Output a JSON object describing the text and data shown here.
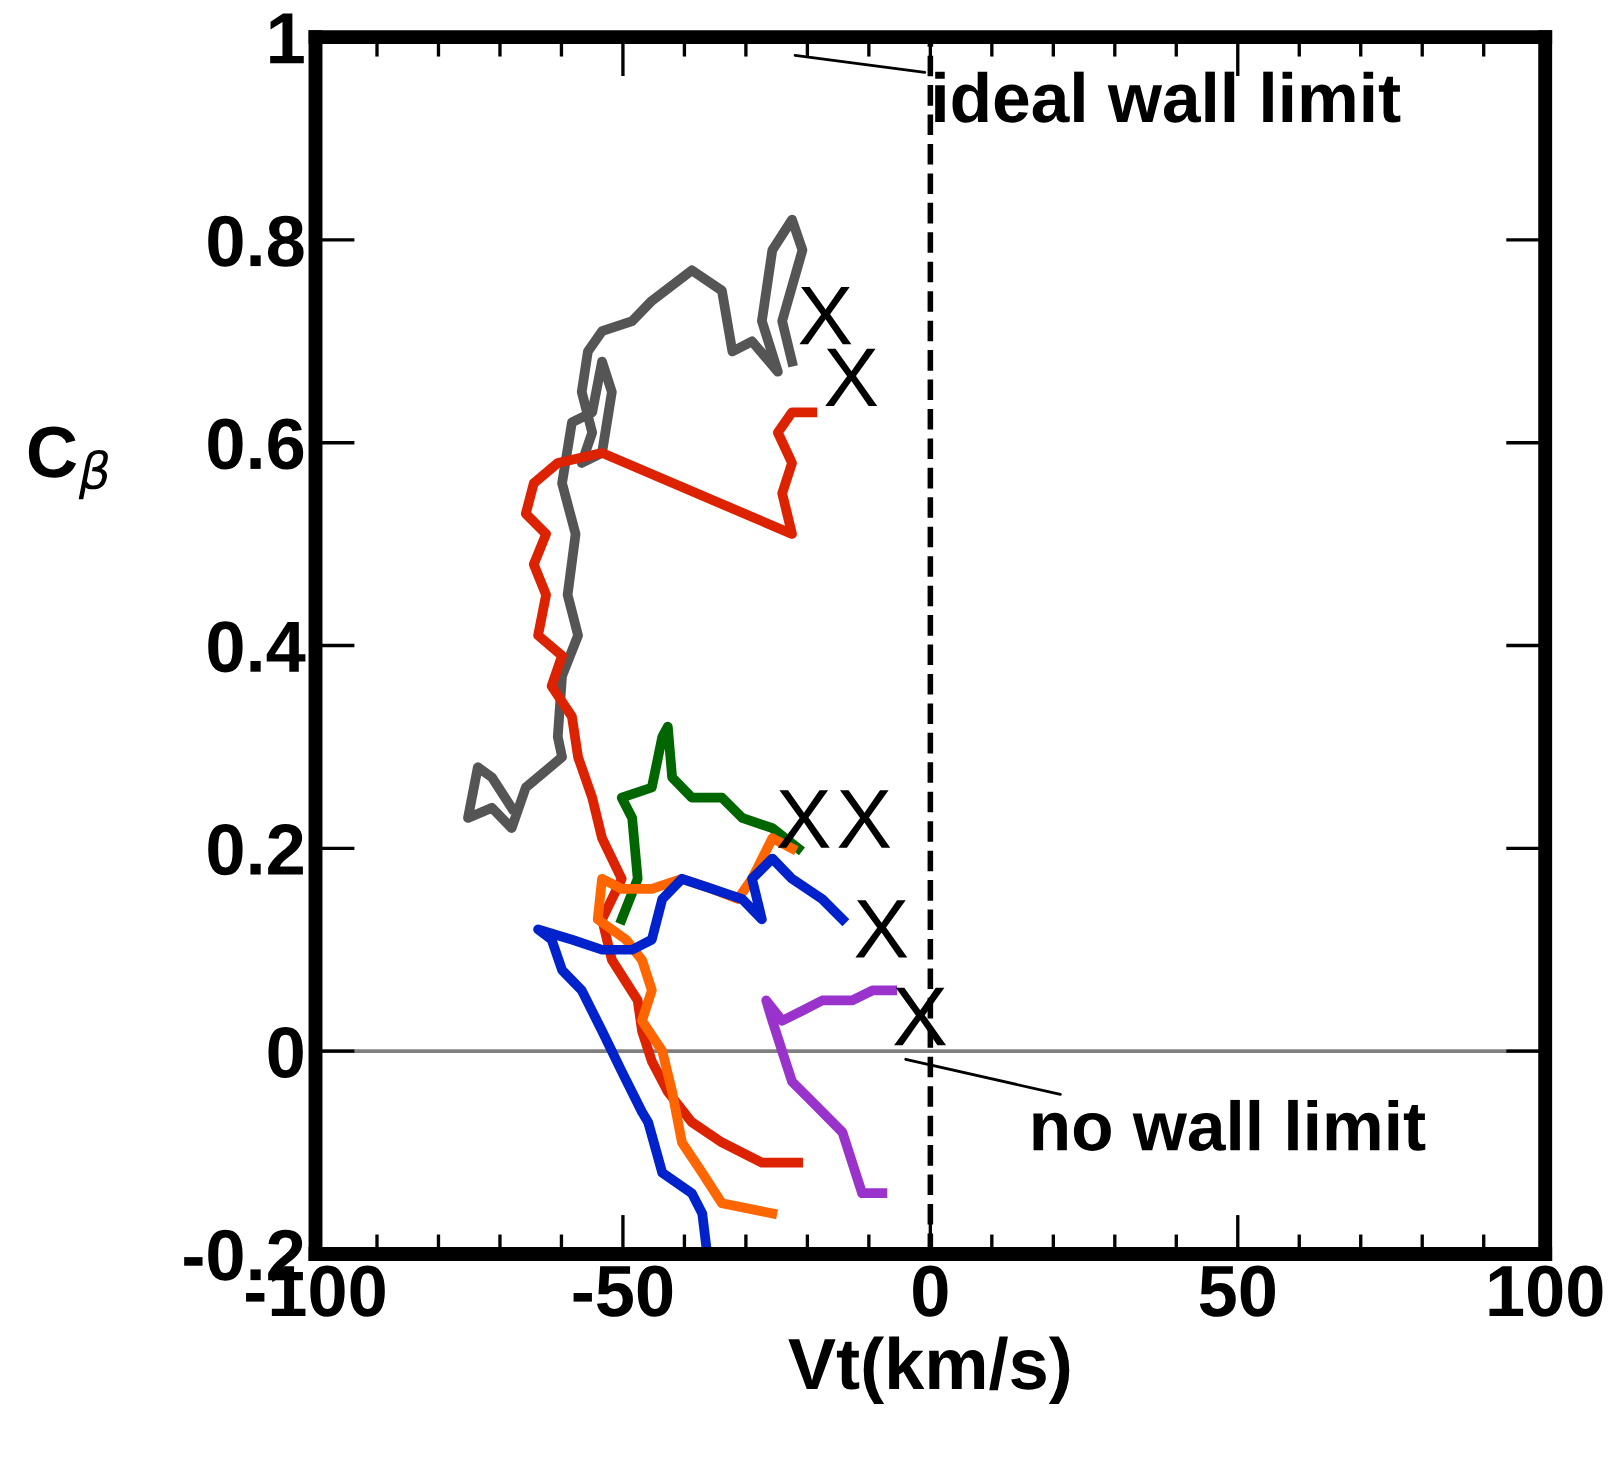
{
  "chart_data": {
    "type": "line",
    "xlabel": "Vt(km/s)",
    "ylabel": "C$_{β}$",
    "xlim": [
      -100,
      100
    ],
    "xticks": [
      -100,
      -50,
      0,
      50,
      100
    ],
    "ylim": [
      -0.2,
      1
    ],
    "yticks": [
      -0.2,
      0,
      0.2,
      0.4,
      0.6,
      0.8,
      1
    ],
    "grid": false,
    "legend": false,
    "marker": "none",
    "line_style": "solid",
    "ref_lines": [
      {
        "axis": "y",
        "value": 0,
        "color": "#808080",
        "line_style": "solid"
      },
      {
        "axis": "x",
        "value": 0,
        "color": "#000000",
        "line_style": "dashed"
      }
    ],
    "annotations": [
      "ideal wall limit",
      "no wall limit",
      {
        "text": "X",
        "x": -22.5,
        "y": 0.68
      },
      {
        "text": "X",
        "x": -19.2,
        "y": 0.63
      },
      {
        "text": "X",
        "x": -21.5,
        "y": 0.2
      },
      {
        "text": "X",
        "x": -22.5,
        "y": 0.2
      },
      {
        "text": "X",
        "x": -14.3,
        "y": 0.13
      },
      {
        "text": "X",
        "x": -6.2,
        "y": 0.06
      }
    ],
    "series": [
      {
        "color": "#555555",
        "x": [
          -68.1,
          -71.3,
          -73.6,
          -75.2,
          -71.3,
          -68.1,
          -65.8,
          -59.9,
          -60.6,
          -59.9,
          -57.3,
          -59.0,
          -57.7,
          -59.9,
          -58.3,
          -55.0,
          -53.4,
          -51.8,
          -53.4,
          -56.7,
          -55.0,
          -56.7,
          -55.7,
          -53.4,
          -48.5,
          -45.3,
          -38.8,
          -33.9,
          -32.2,
          -29.0,
          -24.8,
          -27.4,
          -25.7,
          -22.5,
          -20.8,
          -24.1,
          -22.5
        ],
        "values": [
          0.24,
          0.27,
          0.28,
          0.23,
          0.24,
          0.22,
          0.26,
          0.29,
          0.31,
          0.37,
          0.41,
          0.45,
          0.51,
          0.56,
          0.62,
          0.63,
          0.68,
          0.65,
          0.59,
          0.58,
          0.61,
          0.65,
          0.69,
          0.71,
          0.72,
          0.74,
          0.77,
          0.75,
          0.69,
          0.7,
          0.67,
          0.72,
          0.79,
          0.82,
          0.79,
          0.72,
          0.68
        ]
      },
      {
        "color": "#dd2200",
        "x": [
          -21.5,
          -27.4,
          -33.9,
          -38.8,
          -42.7,
          -45.3,
          -46.9,
          -47.6,
          -51.8,
          -53.4,
          -50.2,
          -53.4,
          -55.0,
          -57.3,
          -58.3,
          -61.6,
          -59.9,
          -63.8,
          -62.5,
          -64.5,
          -62.5,
          -65.8,
          -64.5,
          -60.6,
          -53.4,
          -22.5,
          -24.1,
          -22.5,
          -24.8,
          -22.5,
          -19.2
        ],
        "values": [
          -0.11,
          -0.11,
          -0.09,
          -0.07,
          -0.04,
          -0.01,
          0.02,
          0.05,
          0.09,
          0.13,
          0.17,
          0.21,
          0.25,
          0.29,
          0.33,
          0.36,
          0.39,
          0.41,
          0.45,
          0.48,
          0.51,
          0.53,
          0.56,
          0.58,
          0.59,
          0.51,
          0.55,
          0.58,
          0.61,
          0.63,
          0.63
        ]
      },
      {
        "color": "#006600",
        "x": [
          -50.2,
          -47.6,
          -48.5,
          -50.2,
          -45.3,
          -43.6,
          -42.7,
          -42.0,
          -38.8,
          -33.9,
          -30.6,
          -25.7,
          -21.5
        ],
        "values": [
          0.13,
          0.17,
          0.23,
          0.25,
          0.26,
          0.31,
          0.32,
          0.27,
          0.25,
          0.25,
          0.23,
          0.22,
          0.2
        ]
      },
      {
        "color": "#ff6600",
        "x": [
          -25.7,
          -33.9,
          -37.1,
          -40.4,
          -42.0,
          -43.6,
          -46.9,
          -45.3,
          -46.9,
          -49.5,
          -54.1,
          -53.4,
          -50.2,
          -45.3,
          -40.4,
          -35.5,
          -31.3,
          -29.0,
          -25.7,
          -22.5
        ],
        "values": [
          -0.16,
          -0.15,
          -0.12,
          -0.09,
          -0.04,
          0.0,
          0.03,
          0.06,
          0.09,
          0.11,
          0.13,
          0.17,
          0.16,
          0.16,
          0.17,
          0.16,
          0.15,
          0.17,
          0.21,
          0.2
        ]
      },
      {
        "color": "#0022cc",
        "x": [
          -36.5,
          -37.1,
          -38.8,
          -43.6,
          -45.9,
          -46.9,
          -50.2,
          -53.4,
          -56.7,
          -59.9,
          -61.6,
          -63.8,
          -58.3,
          -53.4,
          -48.5,
          -45.3,
          -43.6,
          -40.4,
          -35.5,
          -30.6,
          -27.4,
          -29.0,
          -25.7,
          -22.5,
          -17.6,
          -14.3
        ],
        "values": [
          -0.19,
          -0.16,
          -0.14,
          -0.12,
          -0.07,
          -0.06,
          -0.02,
          0.02,
          0.06,
          0.08,
          0.11,
          0.12,
          0.11,
          0.1,
          0.1,
          0.11,
          0.15,
          0.17,
          0.16,
          0.15,
          0.13,
          0.17,
          0.19,
          0.17,
          0.15,
          0.13
        ]
      },
      {
        "color": "#9933cc",
        "x": [
          -7.8,
          -11.1,
          -12.7,
          -14.3,
          -19.2,
          -22.5,
          -24.1,
          -25.7,
          -26.7,
          -24.1,
          -20.8,
          -17.6,
          -12.7,
          -9.4,
          -6.2
        ],
        "values": [
          -0.14,
          -0.14,
          -0.11,
          -0.08,
          -0.05,
          -0.03,
          0.0,
          0.03,
          0.05,
          0.03,
          0.04,
          0.05,
          0.05,
          0.06,
          0.06
        ]
      }
    ]
  }
}
